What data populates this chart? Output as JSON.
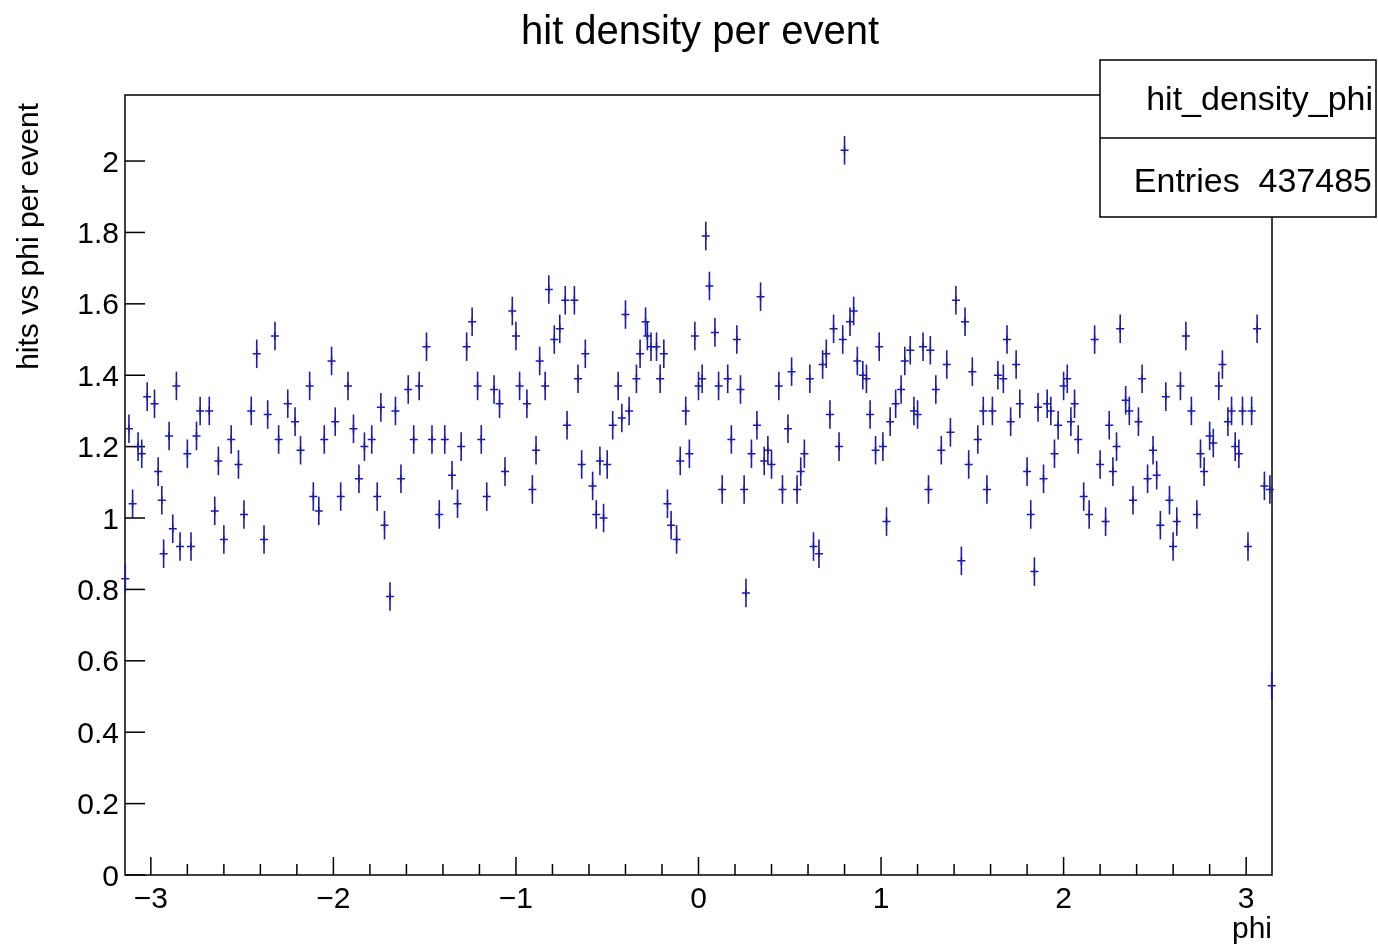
{
  "chart_data": {
    "type": "scatter",
    "title": "hit density per event",
    "xlabel": "phi",
    "ylabel": "hits vs phi per event",
    "annotations": [
      "hit_density_phi",
      "Entries  437485"
    ],
    "marker": "cross",
    "grid": false,
    "xlim": [
      -3.1416,
      3.1416
    ],
    "xticks": [
      {
        "value": -3,
        "label": "−3"
      },
      {
        "value": -2.8,
        "label": null
      },
      {
        "value": -2.6,
        "label": null
      },
      {
        "value": -2.4,
        "label": null
      },
      {
        "value": -2.2,
        "label": null
      },
      {
        "value": -2,
        "label": "−2"
      },
      {
        "value": -1.8,
        "label": null
      },
      {
        "value": -1.6,
        "label": null
      },
      {
        "value": -1.4,
        "label": null
      },
      {
        "value": -1.2,
        "label": null
      },
      {
        "value": -1,
        "label": "−1"
      },
      {
        "value": -0.8,
        "label": null
      },
      {
        "value": -0.6,
        "label": null
      },
      {
        "value": -0.4,
        "label": null
      },
      {
        "value": -0.2,
        "label": null
      },
      0,
      {
        "value": 0.2,
        "label": null
      },
      {
        "value": 0.4,
        "label": null
      },
      {
        "value": 0.6,
        "label": null
      },
      {
        "value": 0.8,
        "label": null
      },
      1,
      {
        "value": 1.2,
        "label": null
      },
      {
        "value": 1.4,
        "label": null
      },
      {
        "value": 1.6,
        "label": null
      },
      {
        "value": 1.8,
        "label": null
      },
      2,
      {
        "value": 2.2,
        "label": null
      },
      {
        "value": 2.4,
        "label": null
      },
      {
        "value": 2.6,
        "label": null
      },
      {
        "value": 2.8,
        "label": null
      },
      3
    ],
    "ylim": [
      0,
      2.185
    ],
    "yticks": [
      0,
      0.2,
      0.4,
      0.6,
      0.8,
      1,
      1.2,
      1.4,
      1.6,
      1.8,
      2
    ],
    "series": [
      {
        "color": "#1c1ca8",
        "x": [
          -3.14,
          -3.12,
          -3.1,
          -3.07,
          -3.05,
          -3.02,
          -2.98,
          -2.96,
          -2.94,
          -2.93,
          -2.9,
          -2.88,
          -2.86,
          -2.84,
          -2.8,
          -2.78,
          -2.75,
          -2.73,
          -2.68,
          -2.65,
          -2.63,
          -2.6,
          -2.56,
          -2.52,
          -2.49,
          -2.45,
          -2.42,
          -2.38,
          -2.36,
          -2.32,
          -2.3,
          -2.25,
          -2.21,
          -2.18,
          -2.13,
          -2.11,
          -2.08,
          -2.05,
          -2.01,
          -1.99,
          -1.96,
          -1.92,
          -1.89,
          -1.86,
          -1.83,
          -1.79,
          -1.76,
          -1.74,
          -1.72,
          -1.69,
          -1.66,
          -1.63,
          -1.59,
          -1.56,
          -1.53,
          -1.49,
          -1.46,
          -1.42,
          -1.39,
          -1.35,
          -1.32,
          -1.3,
          -1.27,
          -1.24,
          -1.21,
          -1.19,
          -1.16,
          -1.12,
          -1.09,
          -1.06,
          -1.02,
          -1.0,
          -0.98,
          -0.94,
          -0.91,
          -0.89,
          -0.87,
          -0.84,
          -0.82,
          -0.79,
          -0.76,
          -0.73,
          -0.72,
          -0.68,
          -0.66,
          -0.64,
          -0.62,
          -0.58,
          -0.56,
          -0.54,
          -0.52,
          -0.5,
          -0.47,
          -0.44,
          -0.42,
          -0.4,
          -0.38,
          -0.34,
          -0.32,
          -0.29,
          -0.28,
          -0.26,
          -0.23,
          -0.21,
          -0.19,
          -0.17,
          -0.15,
          -0.12,
          -0.1,
          -0.07,
          -0.05,
          -0.02,
          0.0,
          0.02,
          0.04,
          0.06,
          0.09,
          0.11,
          0.13,
          0.16,
          0.18,
          0.21,
          0.23,
          0.25,
          0.26,
          0.29,
          0.32,
          0.34,
          0.36,
          0.38,
          0.4,
          0.44,
          0.46,
          0.49,
          0.51,
          0.54,
          0.56,
          0.58,
          0.61,
          0.63,
          0.66,
          0.68,
          0.7,
          0.72,
          0.74,
          0.77,
          0.79,
          0.8,
          0.83,
          0.85,
          0.87,
          0.9,
          0.92,
          0.94,
          0.97,
          0.99,
          1.01,
          1.03,
          1.05,
          1.08,
          1.11,
          1.13,
          1.16,
          1.18,
          1.2,
          1.23,
          1.26,
          1.27,
          1.3,
          1.33,
          1.36,
          1.38,
          1.41,
          1.44,
          1.46,
          1.48,
          1.5,
          1.53,
          1.56,
          1.58,
          1.61,
          1.64,
          1.67,
          1.69,
          1.71,
          1.74,
          1.76,
          1.8,
          1.82,
          1.84,
          1.86,
          1.89,
          1.91,
          1.93,
          1.95,
          1.97,
          2.0,
          2.02,
          2.04,
          2.06,
          2.08,
          2.11,
          2.14,
          2.17,
          2.2,
          2.23,
          2.25,
          2.27,
          2.29,
          2.31,
          2.34,
          2.36,
          2.38,
          2.41,
          2.43,
          2.46,
          2.49,
          2.51,
          2.53,
          2.56,
          2.58,
          2.6,
          2.62,
          2.64,
          2.67,
          2.7,
          2.73,
          2.75,
          2.77,
          2.8,
          2.82,
          2.85,
          2.87,
          2.9,
          2.92,
          2.94,
          2.96,
          2.98,
          3.01,
          3.03,
          3.06,
          3.1,
          3.13,
          3.14
        ],
        "values": [
          0.83,
          1.25,
          1.04,
          1.2,
          1.18,
          1.34,
          1.32,
          1.13,
          1.05,
          0.9,
          1.23,
          0.97,
          1.37,
          0.92,
          1.18,
          0.92,
          1.23,
          1.3,
          1.3,
          1.02,
          1.16,
          0.94,
          1.22,
          1.15,
          1.01,
          1.3,
          1.46,
          0.94,
          1.29,
          1.51,
          1.22,
          1.32,
          1.27,
          1.19,
          1.37,
          1.06,
          1.02,
          1.22,
          1.44,
          1.27,
          1.06,
          1.37,
          1.25,
          1.11,
          1.2,
          1.22,
          1.06,
          1.31,
          0.98,
          0.78,
          1.3,
          1.11,
          1.36,
          1.22,
          1.37,
          1.48,
          1.22,
          1.01,
          1.22,
          1.12,
          1.04,
          1.2,
          1.48,
          1.55,
          1.37,
          1.22,
          1.06,
          1.36,
          1.32,
          1.13,
          1.58,
          1.51,
          1.37,
          1.32,
          1.08,
          1.19,
          1.44,
          1.37,
          1.64,
          1.5,
          1.53,
          1.61,
          1.26,
          1.61,
          1.39,
          1.15,
          1.46,
          1.09,
          1.01,
          1.16,
          1.0,
          1.15,
          1.26,
          1.37,
          1.28,
          1.57,
          1.3,
          1.39,
          1.46,
          1.55,
          1.51,
          1.48,
          1.48,
          1.39,
          1.46,
          1.04,
          0.98,
          0.94,
          1.16,
          1.3,
          1.18,
          1.51,
          1.37,
          1.39,
          1.79,
          1.65,
          1.52,
          1.37,
          1.08,
          1.39,
          1.22,
          1.5,
          1.36,
          1.08,
          0.79,
          1.18,
          1.26,
          1.62,
          1.16,
          1.19,
          1.15,
          1.37,
          1.08,
          1.25,
          1.41,
          1.08,
          1.13,
          1.18,
          1.39,
          0.92,
          0.9,
          1.43,
          1.46,
          1.29,
          1.53,
          1.2,
          1.5,
          2.03,
          1.55,
          1.58,
          1.44,
          1.4,
          1.39,
          1.29,
          1.19,
          1.48,
          1.2,
          0.99,
          1.27,
          1.32,
          1.36,
          1.44,
          1.47,
          1.3,
          1.29,
          1.48,
          1.08,
          1.47,
          1.36,
          1.19,
          1.43,
          1.24,
          1.61,
          0.88,
          1.55,
          1.15,
          1.41,
          1.22,
          1.3,
          1.08,
          1.3,
          1.4,
          1.39,
          1.5,
          1.27,
          1.43,
          1.32,
          1.13,
          1.01,
          0.85,
          1.31,
          1.11,
          1.32,
          1.3,
          1.18,
          1.26,
          1.37,
          1.39,
          1.27,
          1.32,
          1.22,
          1.06,
          1.01,
          1.5,
          1.15,
          0.99,
          1.26,
          1.13,
          1.2,
          1.53,
          1.33,
          1.3,
          1.05,
          1.27,
          1.39,
          1.11,
          1.19,
          1.12,
          0.98,
          1.34,
          1.05,
          0.92,
          0.99,
          1.37,
          1.51,
          1.3,
          1.01,
          1.18,
          1.13,
          1.23,
          1.21,
          1.37,
          1.43,
          1.27,
          1.3,
          1.2,
          1.18,
          1.3,
          0.92,
          1.3,
          1.53,
          1.09,
          1.08,
          0.53
        ],
        "errors": [
          0.04,
          0.04,
          0.04,
          0.04,
          0.04,
          0.04,
          0.04,
          0.04,
          0.04,
          0.04,
          0.04,
          0.04,
          0.04,
          0.04,
          0.04,
          0.04,
          0.04,
          0.04,
          0.04,
          0.04,
          0.04,
          0.04,
          0.04,
          0.04,
          0.04,
          0.04,
          0.04,
          0.04,
          0.04,
          0.04,
          0.04,
          0.04,
          0.04,
          0.04,
          0.04,
          0.04,
          0.04,
          0.04,
          0.04,
          0.04,
          0.04,
          0.04,
          0.04,
          0.04,
          0.04,
          0.04,
          0.04,
          0.04,
          0.04,
          0.04,
          0.04,
          0.04,
          0.04,
          0.04,
          0.04,
          0.04,
          0.04,
          0.04,
          0.04,
          0.04,
          0.04,
          0.04,
          0.04,
          0.04,
          0.04,
          0.04,
          0.04,
          0.04,
          0.04,
          0.04,
          0.04,
          0.04,
          0.04,
          0.04,
          0.04,
          0.04,
          0.04,
          0.04,
          0.04,
          0.04,
          0.04,
          0.04,
          0.04,
          0.04,
          0.04,
          0.04,
          0.04,
          0.04,
          0.04,
          0.04,
          0.04,
          0.04,
          0.04,
          0.04,
          0.04,
          0.04,
          0.04,
          0.04,
          0.04,
          0.04,
          0.04,
          0.04,
          0.04,
          0.04,
          0.04,
          0.04,
          0.04,
          0.04,
          0.04,
          0.04,
          0.04,
          0.04,
          0.04,
          0.04,
          0.04,
          0.04,
          0.04,
          0.04,
          0.04,
          0.04,
          0.04,
          0.04,
          0.04,
          0.04,
          0.04,
          0.04,
          0.04,
          0.04,
          0.04,
          0.04,
          0.04,
          0.04,
          0.04,
          0.04,
          0.04,
          0.04,
          0.04,
          0.04,
          0.04,
          0.04,
          0.04,
          0.04,
          0.04,
          0.04,
          0.04,
          0.04,
          0.04,
          0.04,
          0.04,
          0.04,
          0.04,
          0.04,
          0.04,
          0.04,
          0.04,
          0.04,
          0.04,
          0.04,
          0.04,
          0.04,
          0.04,
          0.04,
          0.04,
          0.04,
          0.04,
          0.04,
          0.04,
          0.04,
          0.04,
          0.04,
          0.04,
          0.04,
          0.04,
          0.04,
          0.04,
          0.04,
          0.04,
          0.04,
          0.04,
          0.04,
          0.04,
          0.04,
          0.04,
          0.04,
          0.04,
          0.04,
          0.04,
          0.04,
          0.04,
          0.04,
          0.04,
          0.04,
          0.04,
          0.04,
          0.04,
          0.04,
          0.04,
          0.04,
          0.04,
          0.04,
          0.04,
          0.04,
          0.04,
          0.04,
          0.04,
          0.04,
          0.04,
          0.04,
          0.04,
          0.04,
          0.04,
          0.04,
          0.04,
          0.04,
          0.04,
          0.04,
          0.04,
          0.04,
          0.04,
          0.04,
          0.04,
          0.04,
          0.04,
          0.04,
          0.04,
          0.04,
          0.04,
          0.04,
          0.04,
          0.04,
          0.04,
          0.04,
          0.04,
          0.04,
          0.04,
          0.04,
          0.04,
          0.04,
          0.04,
          0.04,
          0.04,
          0.04,
          0.04,
          0.04
        ]
      }
    ]
  }
}
